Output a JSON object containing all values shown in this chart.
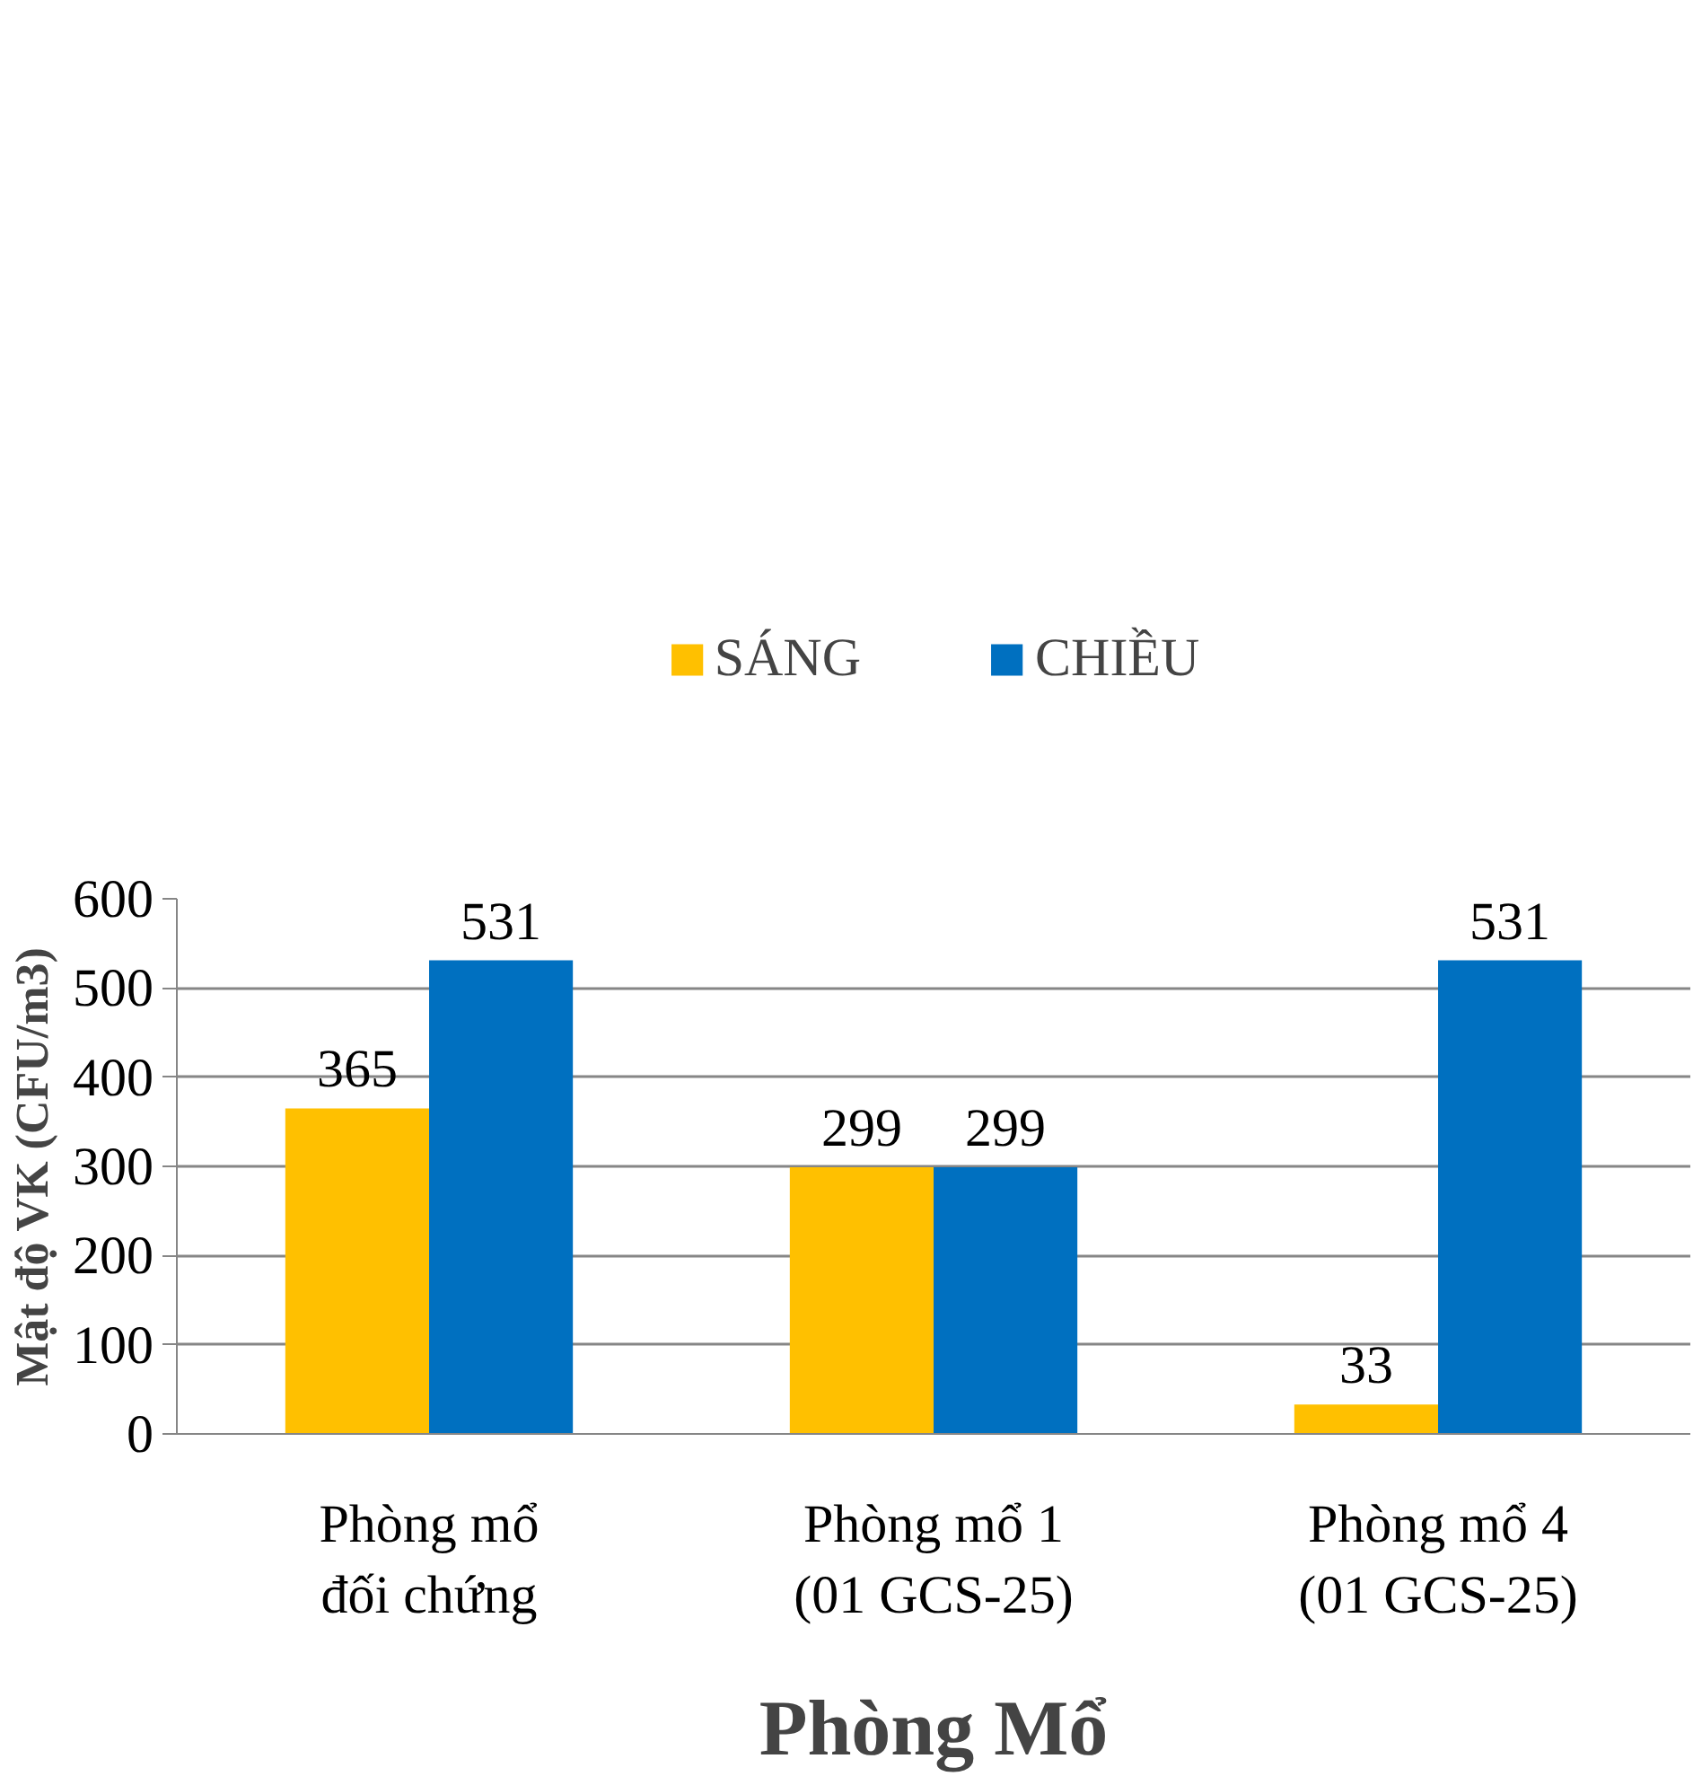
{
  "chart_data": {
    "type": "bar",
    "xlabel": "Phòng Mổ",
    "ylabel": "Mật độ VK (CFU/m3)",
    "categories": [
      "Phòng mổ\nđối chứng",
      "Phòng mổ 1\n(01 GCS-25)",
      "Phòng mổ 4\n(01 GCS-25)"
    ],
    "series": [
      {
        "name": "SÁNG",
        "color": "#ffc000",
        "values": [
          365,
          299,
          33
        ]
      },
      {
        "name": "CHIỀU",
        "color": "#0070c0",
        "values": [
          531,
          299,
          531
        ]
      }
    ],
    "ylim": [
      0,
      600
    ],
    "yticks": [
      0,
      100,
      200,
      300,
      400,
      500,
      600
    ],
    "grid": "y",
    "legend": "top",
    "data_labels": true
  }
}
